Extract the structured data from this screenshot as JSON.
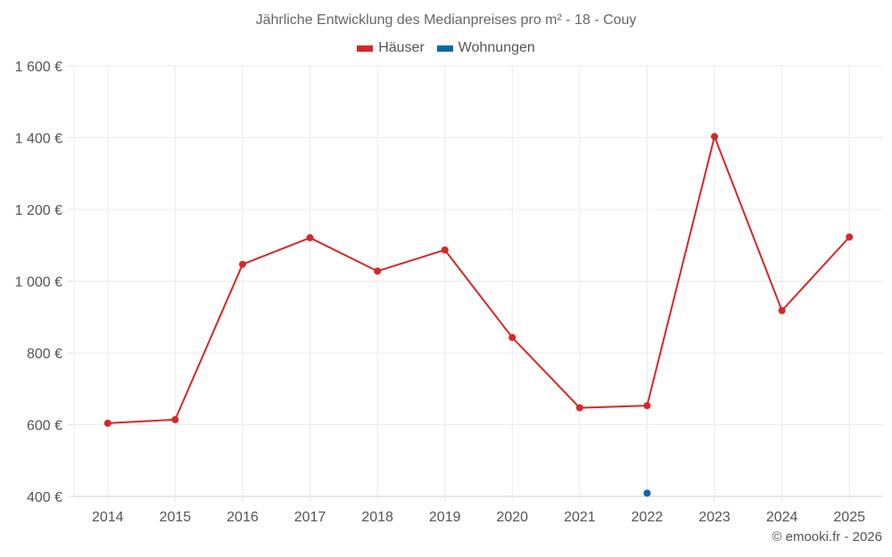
{
  "title": "Jährliche Entwicklung des Medianpreises pro m² - 18 - Couy",
  "legend": [
    {
      "label": "Häuser",
      "color": "#d62728"
    },
    {
      "label": "Wohnungen",
      "color": "#0b68a5"
    }
  ],
  "credit": "© emooki.fr - 2026",
  "chart_data": {
    "type": "line",
    "title": "Jährliche Entwicklung des Medianpreises pro m² - 18 - Couy",
    "xlabel": "",
    "ylabel": "",
    "categories": [
      "2014",
      "2015",
      "2016",
      "2017",
      "2018",
      "2019",
      "2020",
      "2021",
      "2022",
      "2023",
      "2024",
      "2025"
    ],
    "series": [
      {
        "name": "Häuser",
        "color": "#d62728",
        "values": [
          604,
          614,
          1047,
          1121,
          1028,
          1087,
          843,
          647,
          653,
          1403,
          918,
          1123
        ]
      },
      {
        "name": "Wohnungen",
        "color": "#0b68a5",
        "values": [
          null,
          null,
          null,
          null,
          null,
          null,
          null,
          null,
          409,
          null,
          null,
          null
        ]
      }
    ],
    "ylim": [
      400,
      1600
    ],
    "yticks": [
      400,
      600,
      800,
      1000,
      1200,
      1400,
      1600
    ],
    "ytick_labels": [
      "400 €",
      "600 €",
      "800 €",
      "1 000 €",
      "1 200 €",
      "1 400 €",
      "1 600 €"
    ],
    "grid": true,
    "legend_position": "top"
  }
}
